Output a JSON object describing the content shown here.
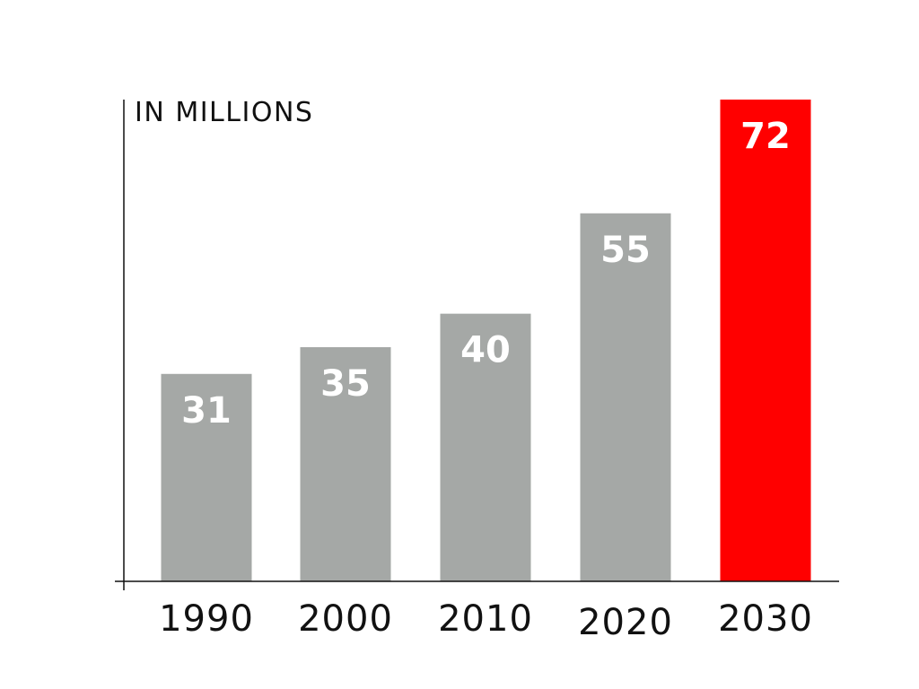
{
  "chart_data": {
    "type": "bar",
    "title": "",
    "xlabel": "",
    "ylabel": "IN MILLIONS",
    "categories": [
      "1990",
      "2000",
      "2010",
      "2020",
      "2030"
    ],
    "values": [
      31,
      35,
      40,
      55,
      72
    ],
    "data_labels": [
      "31",
      "35",
      "40",
      "55",
      "72"
    ],
    "highlight_index": 4,
    "ylim": [
      0,
      72
    ],
    "grid": false,
    "legend": "none",
    "colors": {
      "bar": "#a5a8a6",
      "highlight": "#ff0000",
      "label": "#ffffff",
      "axis": "#111111"
    }
  }
}
